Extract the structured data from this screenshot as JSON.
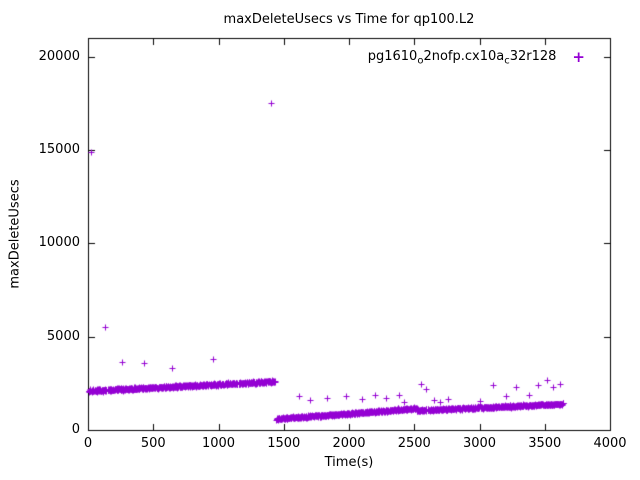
{
  "chart_data": {
    "type": "scatter",
    "title": "maxDeleteUsecs vs Time for qp100.L2",
    "xlabel": "Time(s)",
    "ylabel": "maxDeleteUsecs",
    "xlim": [
      0,
      4000
    ],
    "ylim": [
      0,
      21000
    ],
    "xticks": [
      0,
      500,
      1000,
      1500,
      2000,
      2500,
      3000,
      3500,
      4000
    ],
    "yticks": [
      0,
      5000,
      10000,
      15000,
      20000
    ],
    "grid": false,
    "legend_position": "top-right-inside",
    "marker_glyph": "+",
    "series": [
      {
        "name": "pg1610_o2nofp.cx10a_c32r128",
        "label_parts": [
          {
            "t": "pg1610"
          },
          {
            "s": "o"
          },
          {
            "t": "2nofp.cx10a"
          },
          {
            "s": "c"
          },
          {
            "t": "32r128"
          }
        ],
        "marker": "plus",
        "color": "#9400d3",
        "bands": [
          {
            "x_start": 5,
            "x_end": 1430,
            "y_start": 2100,
            "y_end": 2600,
            "jitter": 110,
            "points": 700
          },
          {
            "x_start": 1440,
            "x_end": 2520,
            "y_start": 600,
            "y_end": 1150,
            "jitter": 100,
            "points": 520
          },
          {
            "x_start": 2520,
            "x_end": 3640,
            "y_start": 1050,
            "y_end": 1400,
            "jitter": 95,
            "points": 520
          }
        ],
        "outliers": [
          [
            20,
            14900
          ],
          [
            130,
            5500
          ],
          [
            260,
            3650
          ],
          [
            430,
            3600
          ],
          [
            640,
            3300
          ],
          [
            960,
            3800
          ],
          [
            1400,
            17500
          ],
          [
            1620,
            1800
          ],
          [
            1700,
            1600
          ],
          [
            1830,
            1700
          ],
          [
            1980,
            1800
          ],
          [
            2100,
            1650
          ],
          [
            2200,
            1900
          ],
          [
            2280,
            1700
          ],
          [
            2380,
            1850
          ],
          [
            2420,
            1500
          ],
          [
            2550,
            2450
          ],
          [
            2590,
            2200
          ],
          [
            2650,
            1600
          ],
          [
            2700,
            1500
          ],
          [
            2760,
            1650
          ],
          [
            3000,
            1550
          ],
          [
            3100,
            2400
          ],
          [
            3200,
            1800
          ],
          [
            3280,
            2300
          ],
          [
            3380,
            1900
          ],
          [
            3450,
            2400
          ],
          [
            3520,
            2700
          ],
          [
            3560,
            2300
          ],
          [
            3620,
            2450
          ]
        ]
      }
    ]
  }
}
